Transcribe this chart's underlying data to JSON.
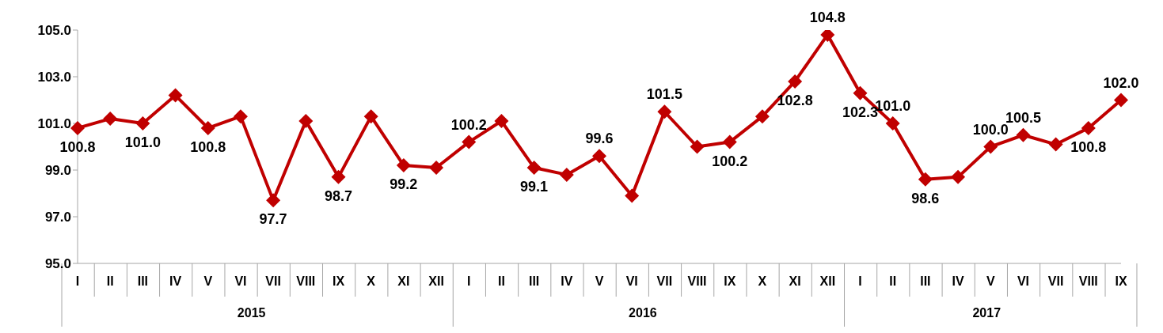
{
  "chart_data": {
    "type": "line",
    "categories": [
      "I",
      "II",
      "III",
      "IV",
      "V",
      "VI",
      "VII",
      "VIII",
      "IX",
      "X",
      "XI",
      "XII",
      "I",
      "II",
      "III",
      "IV",
      "V",
      "VI",
      "VII",
      "VIII",
      "IX",
      "X",
      "XI",
      "XII",
      "I",
      "II",
      "III",
      "IV",
      "V",
      "VI",
      "VII",
      "VIII",
      "IX"
    ],
    "values": [
      100.8,
      101.2,
      101.0,
      102.2,
      100.8,
      101.3,
      97.7,
      101.1,
      98.7,
      101.3,
      99.2,
      99.1,
      100.2,
      101.1,
      99.1,
      98.8,
      99.6,
      97.9,
      101.5,
      100.0,
      100.2,
      101.3,
      102.8,
      104.8,
      102.3,
      101.0,
      98.6,
      98.7,
      100.0,
      100.5,
      100.1,
      100.8,
      102.0
    ],
    "value_labels": [
      "100.8",
      null,
      "101.0",
      null,
      "100.8",
      null,
      "97.7",
      null,
      "98.7",
      null,
      "99.2",
      null,
      "100.2",
      null,
      "99.1",
      null,
      "99.6",
      null,
      "101.5",
      null,
      "100.2",
      null,
      "102.8",
      "104.8",
      "102.3",
      "101.0",
      "98.6",
      null,
      "100.0",
      "100.5",
      null,
      "100.8",
      "102.0"
    ],
    "color": "#c00000",
    "marker": "diamond",
    "line_style": "solid",
    "ylim": [
      95,
      105
    ],
    "yticks": [
      {
        "value": 95,
        "label": "95.0"
      },
      {
        "value": 97,
        "label": "97.0"
      },
      {
        "value": 99,
        "label": "99.0"
      },
      {
        "value": 101,
        "label": "101.0"
      },
      {
        "value": 103,
        "label": "103.0"
      },
      {
        "value": 105,
        "label": "105.0"
      }
    ],
    "annotations": [
      "2015",
      "2016",
      "2017"
    ]
  }
}
